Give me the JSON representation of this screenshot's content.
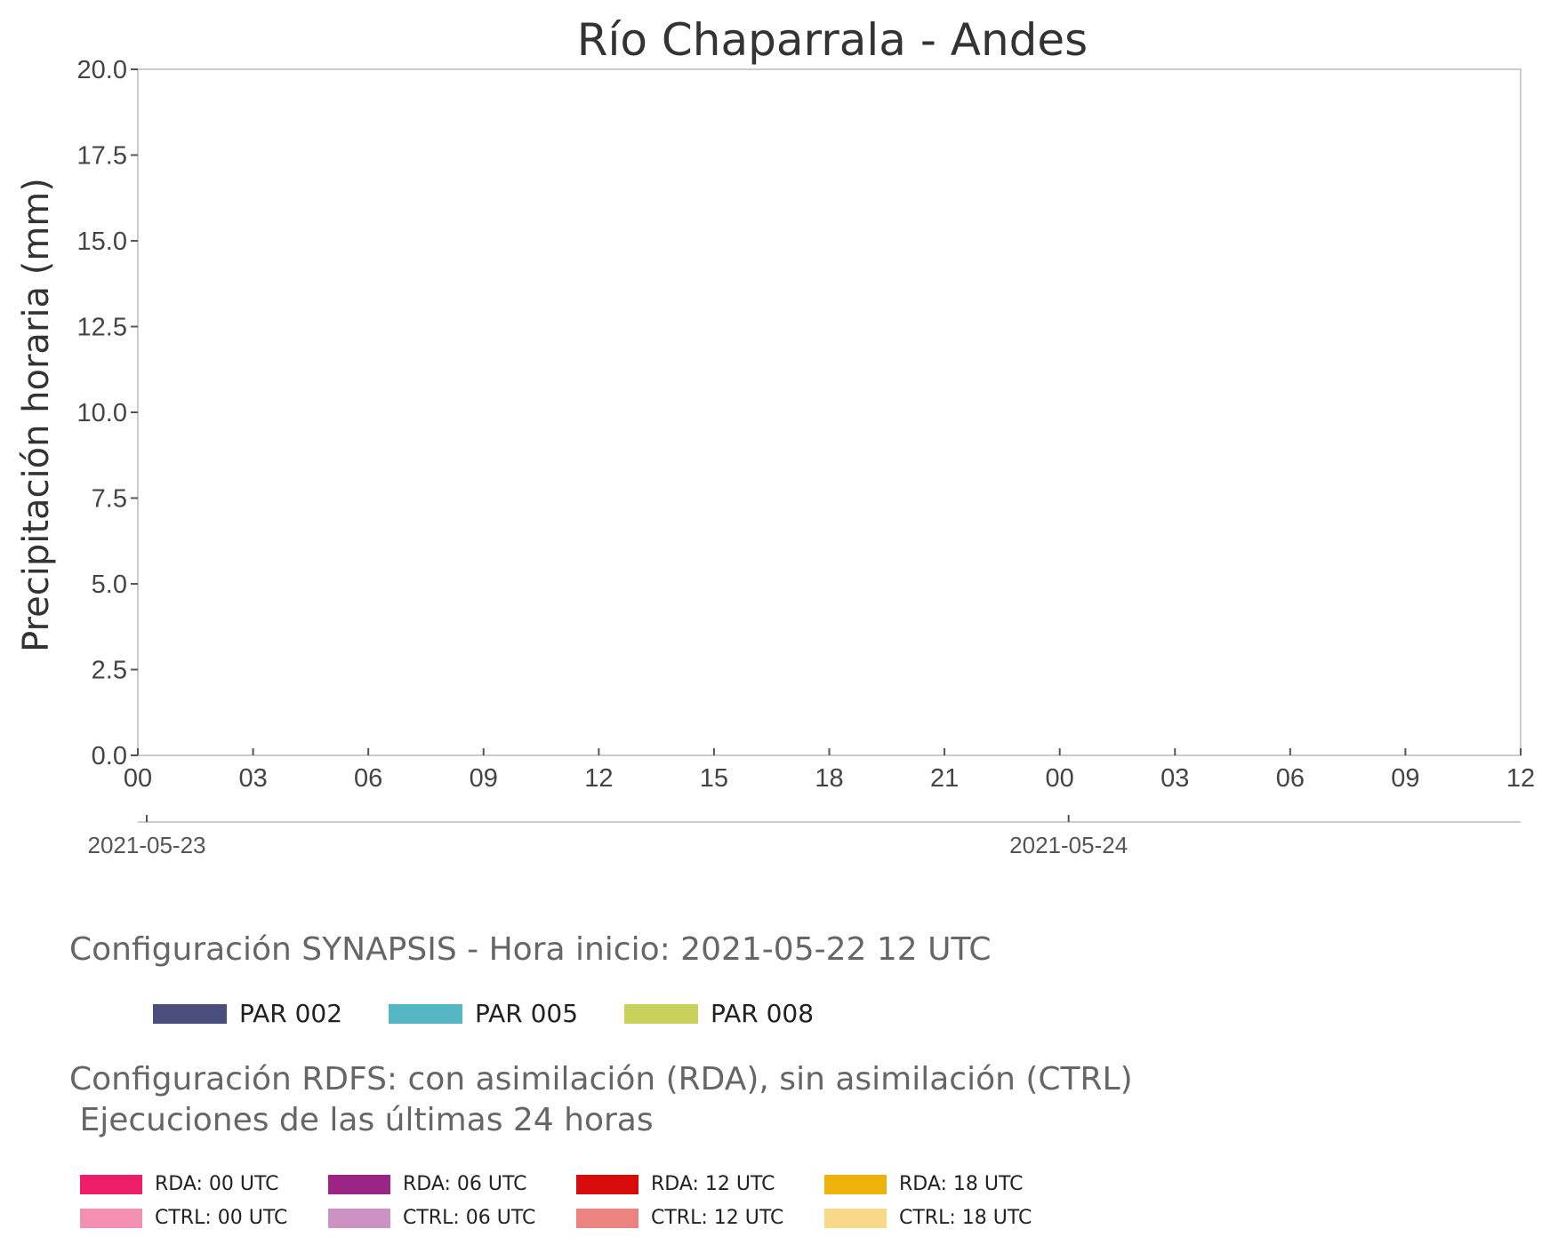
{
  "chart_data": {
    "type": "bar",
    "title": "Río Chaparrala - Andes",
    "ylabel": "Precipitación horaria (mm)",
    "xlabel": "",
    "ylim": [
      0,
      20
    ],
    "y_ticks": [
      "0.0",
      "2.5",
      "5.0",
      "7.5",
      "10.0",
      "12.5",
      "15.0",
      "17.5",
      "20.0"
    ],
    "x_range_hours": [
      0,
      36
    ],
    "x_ticks": [
      "00",
      "03",
      "06",
      "09",
      "12",
      "15",
      "18",
      "21",
      "00",
      "03",
      "06",
      "09",
      "12"
    ],
    "date_ticks": [
      {
        "hour": 0,
        "label": "2021-05-23"
      },
      {
        "hour": 24,
        "label": "2021-05-24"
      }
    ],
    "series": [],
    "grid": false
  },
  "synapsis": {
    "heading": "Configuración SYNAPSIS - Hora inicio: 2021-05-22 12 UTC",
    "items": [
      {
        "label": "PAR 002",
        "color": "#4a4e7d"
      },
      {
        "label": "PAR 005",
        "color": "#56b7c4"
      },
      {
        "label": "PAR 008",
        "color": "#c9d15b"
      }
    ]
  },
  "rdfs": {
    "heading": "Configuración RDFS: con asimilación (RDA), sin asimilación (CTRL)\n Ejecuciones de las últimas 24 horas",
    "items": [
      {
        "label": "RDA: 00 UTC",
        "color": "#ee1f68"
      },
      {
        "label": "RDA: 06 UTC",
        "color": "#9b2585"
      },
      {
        "label": "RDA: 12 UTC",
        "color": "#d80b0b"
      },
      {
        "label": "RDA: 18 UTC",
        "color": "#eeb30a"
      },
      {
        "label": "CTRL: 00 UTC",
        "color": "#f690b2"
      },
      {
        "label": "CTRL: 06 UTC",
        "color": "#cd92c4"
      },
      {
        "label": "CTRL: 12 UTC",
        "color": "#eb8480"
      },
      {
        "label": "CTRL: 18 UTC",
        "color": "#f8d889"
      }
    ]
  }
}
